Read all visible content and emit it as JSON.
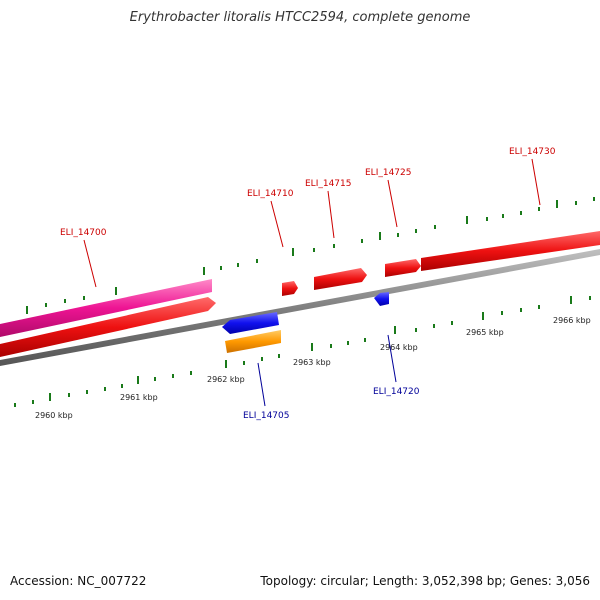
{
  "title": "Erythrobacter litoralis HTCC2594, complete genome",
  "footer": {
    "accession": "Accession: NC_007722",
    "summary": "Topology: circular; Length: 3,052,398 bp; Genes: 3,056"
  },
  "colors": {
    "backbone": "#808080",
    "forward_gene": "#ee1111",
    "reverse_gene": "#1111ee",
    "rna_gene": "#ee1493",
    "other_gene": "#ff9900",
    "tick": "#1a7a1a",
    "forward_label": "#cc0000",
    "reverse_label": "#000099"
  },
  "ticks": {
    "labels": [
      "2960 kbp",
      "2961 kbp",
      "2962 kbp",
      "2963 kbp",
      "2964 kbp",
      "2965 kbp",
      "2966 kbp"
    ]
  },
  "gene_labels": {
    "ELI_14700": "ELI_14700",
    "ELI_14705": "ELI_14705",
    "ELI_14710": "ELI_14710",
    "ELI_14715": "ELI_14715",
    "ELI_14720": "ELI_14720",
    "ELI_14725": "ELI_14725",
    "ELI_14730": "ELI_14730"
  }
}
